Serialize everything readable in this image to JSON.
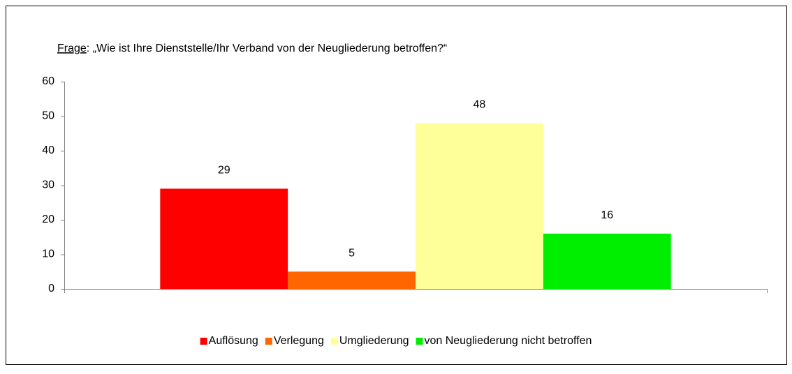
{
  "chart_data": {
    "type": "bar",
    "title": "Frage: „Wie ist Ihre Dienststelle/Ihr Verband von der Neugliederung betroffen?“",
    "categories": [
      null
    ],
    "series": [
      {
        "name": "Auflösung",
        "color": "#ff0000",
        "values": [
          29
        ]
      },
      {
        "name": "Verlegung",
        "color": "#ff6600",
        "values": [
          5
        ]
      },
      {
        "name": "Umgliederung",
        "color": "#ffff99",
        "values": [
          48
        ]
      },
      {
        "name": "von Neugliederung nicht betroffen",
        "color": "#00ee00",
        "values": [
          16
        ]
      }
    ],
    "ylim": [
      0,
      60
    ],
    "yticks": [
      0,
      10,
      20,
      30,
      40,
      50,
      60
    ],
    "grid": false,
    "legend": "bottom"
  }
}
